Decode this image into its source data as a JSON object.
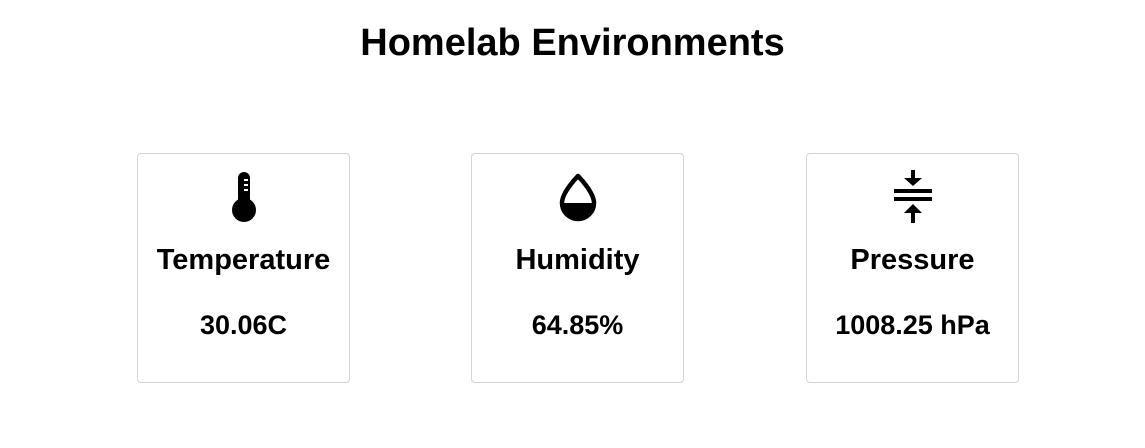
{
  "page": {
    "title": "Homelab Environments"
  },
  "cards": [
    {
      "icon": "thermometer-icon",
      "label": "Temperature",
      "value": "30.06C"
    },
    {
      "icon": "water-drop-icon",
      "label": "Humidity",
      "value": "64.85%"
    },
    {
      "icon": "compress-icon",
      "label": "Pressure",
      "value": "1008.25 hPa"
    }
  ]
}
